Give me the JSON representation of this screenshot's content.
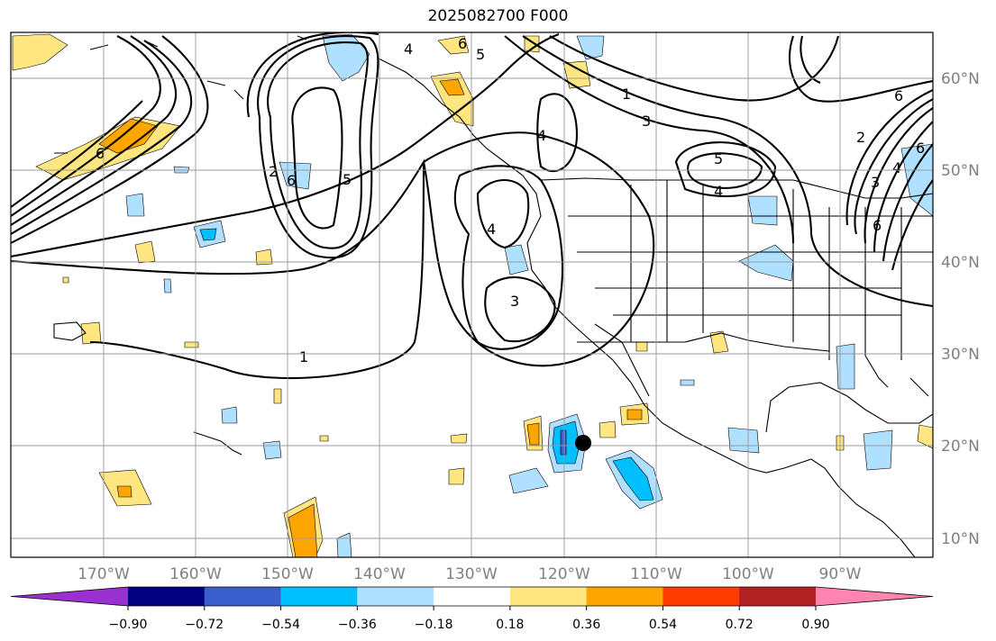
{
  "title": "2025082700 F000",
  "lon_labels": [
    "170°W",
    "160°W",
    "150°W",
    "140°W",
    "130°W",
    "120°W",
    "110°W",
    "100°W",
    "90°W"
  ],
  "lat_labels": [
    "60°N",
    "50°N",
    "40°N",
    "30°N",
    "20°N",
    "10°N"
  ],
  "contour_labels": [
    "1",
    "1",
    "3",
    "3",
    "4",
    "4",
    "4",
    "5",
    "5",
    "6",
    "6",
    "2",
    "6",
    "6",
    "3",
    "4",
    "5",
    "6",
    "6",
    "2",
    "4"
  ],
  "colorbar": {
    "colors": [
      "#9b30d0",
      "#000080",
      "#3a5fcd",
      "#00bfff",
      "#b0e0ff",
      "#ffffff",
      "#ffe680",
      "#ffa500",
      "#ff3c00",
      "#b22222",
      "#ff85b0"
    ],
    "tick_labels": [
      "−0.90",
      "−0.72",
      "−0.54",
      "−0.36",
      "−0.18",
      "0.18",
      "0.36",
      "0.54",
      "0.72",
      "0.90"
    ]
  },
  "marker": {
    "lon": "118°W",
    "lat": "20°N"
  }
}
